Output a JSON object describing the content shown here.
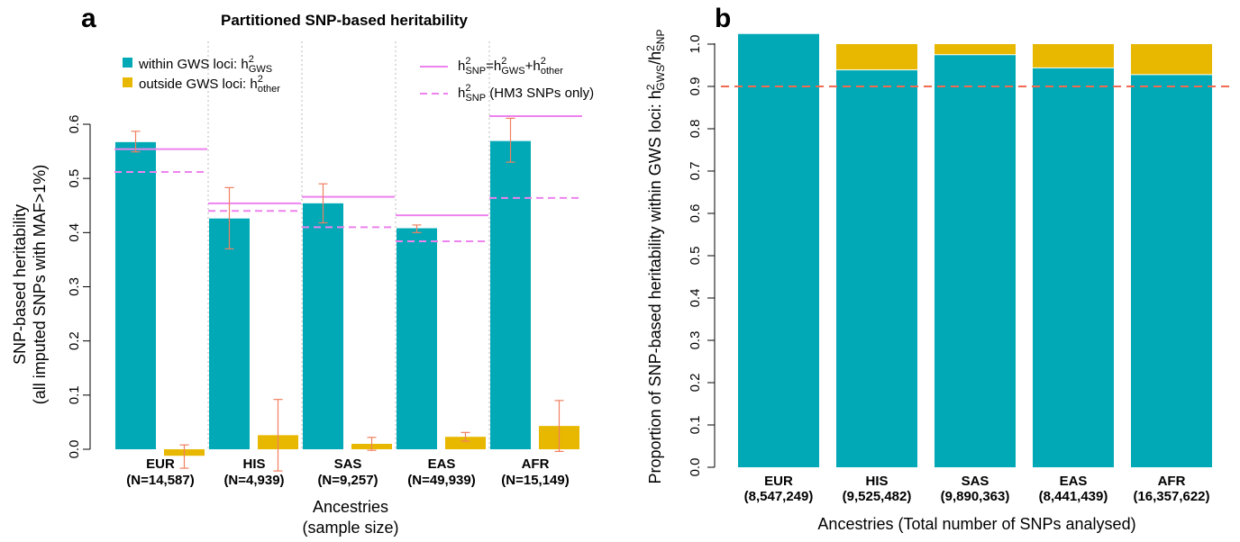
{
  "panel_a": {
    "letter": "a",
    "title": "Partitioned SNP-based heritability",
    "ylabel_line1": "SNP-based heritability",
    "ylabel_line2": "(all imputed SNPs with MAF>1%)",
    "xlabel_line1": "Ancestries",
    "xlabel_line2": "(sample size)",
    "legend": {
      "within_label": "within GWS loci: h",
      "within_sup": "2",
      "within_sub": "GWS",
      "outside_label": "outside GWS loci: h",
      "outside_sup": "2",
      "outside_sub": "other",
      "line_solid_label": {
        "p1": "h",
        "p1_sup": "2",
        "p1_sub": "SNP",
        "p2": "=h",
        "p2_sup": "2",
        "p2_sub": "GWS",
        "p3": "+h",
        "p3_sup": "2",
        "p3_sub": "other"
      },
      "line_dashed_label": {
        "p1": "h",
        "p1_sup": "2",
        "p1_sub": "SNP",
        "p2": " (HM3 SNPs only)"
      }
    }
  },
  "panel_b": {
    "letter": "b",
    "ylabel": {
      "p1": "Proportion of SNP-based heritability within GWS loci: h",
      "p1_sup": "2",
      "p1_sub": "GWS",
      "p2": "/h",
      "p2_sup": "2",
      "p2_sub": "SNP"
    },
    "xlabel": "Ancestries (Total number of SNPs analysed)"
  },
  "colors": {
    "teal": "#00A9B5",
    "gold": "#E8B800",
    "pink": "#EE82EE",
    "error": "#F08060",
    "ref_line": "#F26A4F",
    "grid": "#BBBBBB"
  },
  "chart_data": [
    {
      "type": "bar",
      "title": "Partitioned SNP-based heritability",
      "categories": [
        "EUR",
        "HIS",
        "SAS",
        "EAS",
        "AFR"
      ],
      "category_sublabels": [
        "(N=14,587)",
        "(N=4,939)",
        "(N=9,257)",
        "(N=49,939)",
        "(N=15,149)"
      ],
      "ylabel": "SNP-based heritability (all imputed SNPs with MAF>1%)",
      "xlabel": "Ancestries (sample size)",
      "ylim": [
        0,
        0.6
      ],
      "yticks": [
        "0.0",
        "0.1",
        "0.2",
        "0.3",
        "0.4",
        "0.5",
        "0.6"
      ],
      "series": [
        {
          "name": "within GWS loci: h2GWS",
          "values": [
            0.567,
            0.426,
            0.454,
            0.408,
            0.569
          ],
          "err_low": [
            0.549,
            0.37,
            0.418,
            0.4,
            0.53
          ],
          "err_high": [
            0.587,
            0.483,
            0.49,
            0.414,
            0.611
          ]
        },
        {
          "name": "outside GWS loci: h2other",
          "values": [
            -0.012,
            0.026,
            0.01,
            0.023,
            0.043
          ],
          "err_low": [
            -0.035,
            -0.04,
            -0.002,
            0.015,
            -0.004
          ],
          "err_high": [
            0.008,
            0.092,
            0.022,
            0.031,
            0.09
          ]
        }
      ],
      "lines": [
        {
          "name": "h2SNP=h2GWS+h2other",
          "style": "solid",
          "values": [
            0.554,
            0.454,
            0.466,
            0.432,
            0.615
          ]
        },
        {
          "name": "h2SNP (HM3 SNPs only)",
          "style": "dashed",
          "values": [
            0.512,
            0.44,
            0.41,
            0.384,
            0.464
          ]
        }
      ]
    },
    {
      "type": "bar",
      "stacked": true,
      "categories": [
        "EUR",
        "HIS",
        "SAS",
        "EAS",
        "AFR"
      ],
      "category_sublabels": [
        "(8,547,249)",
        "(9,525,482)",
        "(9,890,363)",
        "(8,441,439)",
        "(16,357,622)"
      ],
      "ylabel": "Proportion of SNP-based heritability within GWS loci: h2GWS/h2SNP",
      "xlabel": "Ancestries (Total number of SNPs analysed)",
      "ylim": [
        0,
        1.0
      ],
      "yticks": [
        "0.0",
        "0.1",
        "0.2",
        "0.3",
        "0.4",
        "0.5",
        "0.6",
        "0.7",
        "0.8",
        "0.9",
        "1.0"
      ],
      "series": [
        {
          "name": "within",
          "values": [
            1.024,
            0.939,
            0.975,
            0.944,
            0.928
          ]
        },
        {
          "name": "outside",
          "values": [
            0.0,
            0.061,
            0.025,
            0.056,
            0.072
          ]
        }
      ],
      "reference_line": 0.9
    }
  ]
}
